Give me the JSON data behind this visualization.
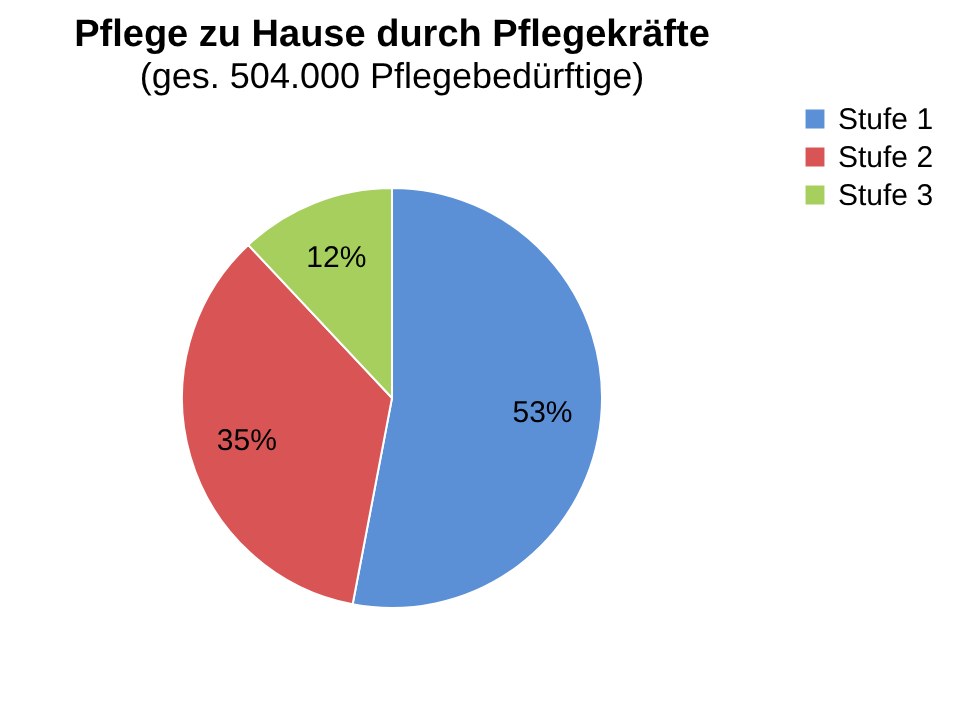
{
  "chart_data": {
    "type": "pie",
    "title": "Pflege zu Hause durch Pflegekräfte",
    "subtitle": "(ges. 504.000 Pflegebedürftige)",
    "categories": [
      "Stufe 1",
      "Stufe 2",
      "Stufe 3"
    ],
    "values": [
      53,
      35,
      12
    ],
    "colors": [
      "#5b8fd6",
      "#d95555",
      "#a6cf5e"
    ],
    "value_labels": [
      "53%",
      "35%",
      "12%"
    ],
    "legend": "right"
  }
}
